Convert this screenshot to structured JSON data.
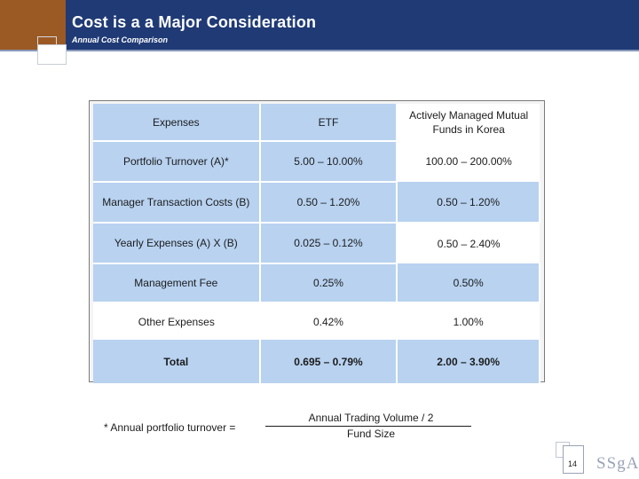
{
  "header": {
    "title": "Cost is a a Major Consideration",
    "subtitle": "Annual Cost Comparison"
  },
  "table": {
    "headers": [
      "Expenses",
      "ETF",
      "Actively Managed Mutual Funds in Korea"
    ],
    "rows": [
      {
        "expense": "Portfolio Turnover (A)*",
        "etf": "5.00 – 10.00%",
        "mutual_fund": "100.00 – 200.00%"
      },
      {
        "expense": "Manager Transaction Costs (B)",
        "etf": "0.50 – 1.20%",
        "mutual_fund": "0.50 – 1.20%"
      },
      {
        "expense": "Yearly Expenses (A) X (B)",
        "etf": "0.025 – 0.12%",
        "mutual_fund": "0.50 – 2.40%"
      },
      {
        "expense": "Management Fee",
        "etf": "0.25%",
        "mutual_fund": "0.50%"
      },
      {
        "expense": "Other Expenses",
        "etf": "0.42%",
        "mutual_fund": "1.00%"
      },
      {
        "expense": "Total",
        "etf": "0.695 – 0.79%",
        "mutual_fund": "2.00 – 3.90%"
      }
    ]
  },
  "footnote": {
    "label": "* Annual portfolio turnover =",
    "numerator": "Annual Trading Volume / 2",
    "denominator": "Fund Size"
  },
  "footer": {
    "page_number": "14",
    "logo_text": "SSgA"
  },
  "colors": {
    "header_band": "#1f3a75",
    "header_accent": "#9b5a24",
    "table_cell_blue": "#b8d2f0"
  }
}
